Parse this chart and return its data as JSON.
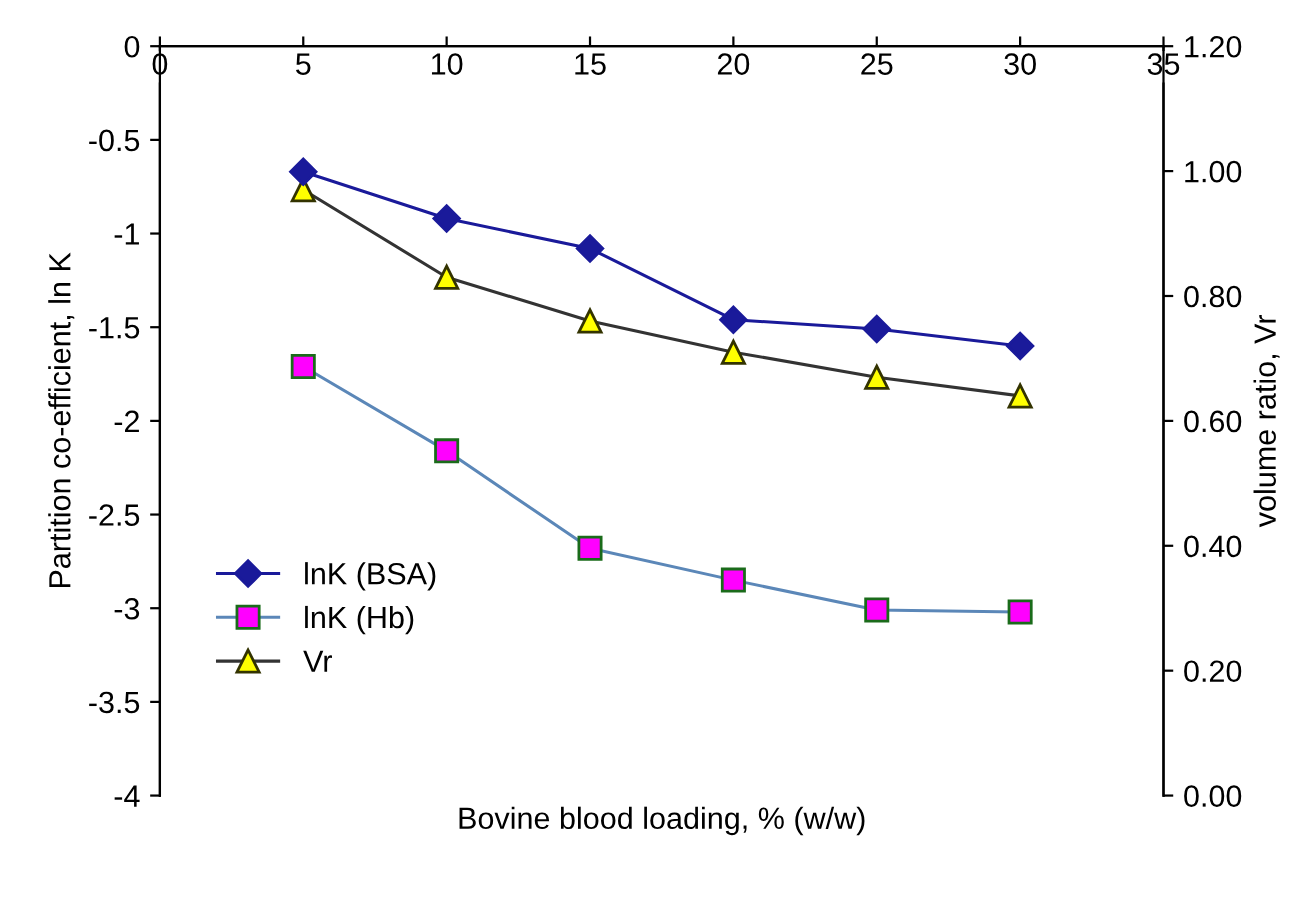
{
  "chart_data": {
    "type": "line",
    "xlabel": "Bovine blood loading, % (w/w)",
    "ylabel": "Partition co-efficient, ln K",
    "y2label": "volume ratio, Vr",
    "x": [
      5,
      10,
      15,
      20,
      25,
      30
    ],
    "series": [
      {
        "name": "lnK (BSA)",
        "color": "#1a1a9a",
        "marker": "diamond",
        "values": [
          -0.67,
          -0.92,
          -1.08,
          -1.46,
          -1.51,
          -1.6
        ]
      },
      {
        "name": "lnK (Hb)",
        "color": "#5b87b8",
        "marker": "square",
        "values": [
          -1.71,
          -2.16,
          -2.68,
          -2.85,
          -3.01,
          -3.02
        ]
      },
      {
        "name": "Vr",
        "color": "#333333",
        "marker": "triangle",
        "axis": "y2",
        "values": [
          0.97,
          0.83,
          0.76,
          0.71,
          0.67,
          0.64
        ]
      }
    ],
    "xlim": [
      0,
      35
    ],
    "xticks": [
      0,
      5,
      10,
      15,
      20,
      25,
      30,
      35
    ],
    "ylim": [
      -4,
      0
    ],
    "yticks": [
      -4,
      -3.5,
      -3,
      -2.5,
      -2,
      -1.5,
      -1,
      -0.5,
      0
    ],
    "y2lim": [
      0,
      1.2
    ],
    "y2ticks": [
      {
        "value": 0,
        "label": "0.00"
      },
      {
        "value": 0.2,
        "label": "0.20"
      },
      {
        "value": 0.4,
        "label": "0.40"
      },
      {
        "value": 0.6,
        "label": "0.60"
      },
      {
        "value": 0.8,
        "label": "0.80"
      },
      {
        "value": 1.0,
        "label": "1.00"
      },
      {
        "value": 1.2,
        "label": "1.20"
      }
    ],
    "grid": false,
    "legend": "bottom left",
    "line_style": "solid"
  }
}
